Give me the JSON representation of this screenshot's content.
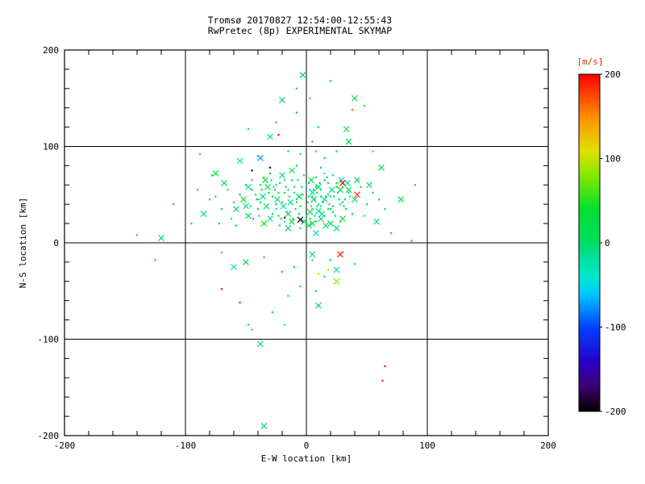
{
  "header": {
    "line1": "Tromsø 20170827 12:54:00-12:55:43",
    "line2": "RwPretec (8p) EXPERIMENTAL SKYMAP"
  },
  "chart_data": {
    "type": "scatter",
    "title": "Tromsø 20170827 12:54:00-12:55:43",
    "subtitle": "RwPretec (8p) EXPERIMENTAL SKYMAP",
    "xlabel": "E-W location [km]",
    "ylabel": "N-S location [km]",
    "xlim": [
      -200,
      200
    ],
    "ylim": [
      -200,
      200
    ],
    "xticks": [
      -200,
      -100,
      0,
      100,
      200
    ],
    "yticks": [
      -200,
      -100,
      0,
      100,
      200
    ],
    "grid": true,
    "frame_color": "#000000",
    "background": "#ffffff",
    "colorbar": {
      "label": "[m/s]",
      "ticks": [
        200,
        100,
        0,
        -100,
        -200
      ],
      "range": [
        -200,
        200
      ],
      "label_color": "#d43000"
    },
    "colormap": [
      [
        -200,
        "#000000"
      ],
      [
        -170,
        "#3c0070"
      ],
      [
        -140,
        "#2a00c8"
      ],
      [
        -100,
        "#0040ff"
      ],
      [
        -60,
        "#00c8ff"
      ],
      [
        -40,
        "#00e8cc"
      ],
      [
        -15,
        "#00e09a"
      ],
      [
        0,
        "#00dd66"
      ],
      [
        40,
        "#00e030"
      ],
      [
        80,
        "#80e800"
      ],
      [
        110,
        "#e0e000"
      ],
      [
        150,
        "#ff9000"
      ],
      [
        200,
        "#ff0000"
      ]
    ],
    "point_format": [
      "x_km",
      "y_km",
      "velocity_ms",
      "marker(d=dot,x=cross)"
    ],
    "points": [
      [
        -8,
        42,
        12,
        "d"
      ],
      [
        3,
        55,
        -8,
        "d"
      ],
      [
        -15,
        30,
        25,
        "x"
      ],
      [
        12,
        48,
        3,
        "d"
      ],
      [
        -25,
        60,
        -18,
        "d"
      ],
      [
        5,
        20,
        30,
        "x"
      ],
      [
        -40,
        45,
        8,
        "d"
      ],
      [
        20,
        35,
        -3,
        "d"
      ],
      [
        -2,
        70,
        20,
        "d"
      ],
      [
        8,
        10,
        -25,
        "x"
      ],
      [
        -18,
        52,
        15,
        "d"
      ],
      [
        25,
        58,
        40,
        "d"
      ],
      [
        -30,
        25,
        -12,
        "x"
      ],
      [
        15,
        65,
        5,
        "d"
      ],
      [
        -5,
        38,
        28,
        "d"
      ],
      [
        0,
        28,
        -5,
        "d"
      ],
      [
        -12,
        75,
        18,
        "x"
      ],
      [
        30,
        42,
        0,
        "d"
      ],
      [
        -45,
        55,
        35,
        "d"
      ],
      [
        10,
        33,
        -15,
        "x"
      ],
      [
        -22,
        18,
        10,
        "d"
      ],
      [
        18,
        50,
        22,
        "d"
      ],
      [
        -35,
        68,
        -20,
        "d"
      ],
      [
        6,
        45,
        6,
        "x"
      ],
      [
        -10,
        58,
        45,
        "d"
      ],
      [
        28,
        22,
        2,
        "d"
      ],
      [
        -50,
        38,
        -10,
        "x"
      ],
      [
        2,
        62,
        32,
        "d"
      ],
      [
        -28,
        48,
        14,
        "d"
      ],
      [
        22,
        70,
        -28,
        "d"
      ],
      [
        -15,
        15,
        12,
        "x"
      ],
      [
        35,
        52,
        -8,
        "d"
      ],
      [
        -8,
        80,
        25,
        "d"
      ],
      [
        12,
        25,
        3,
        "x"
      ],
      [
        -38,
        60,
        -18,
        "d"
      ],
      [
        5,
        35,
        30,
        "d"
      ],
      [
        -20,
        42,
        8,
        "d"
      ],
      [
        25,
        15,
        -3,
        "x"
      ],
      [
        -3,
        50,
        20,
        "d"
      ],
      [
        15,
        72,
        -25,
        "d"
      ],
      [
        -48,
        28,
        15,
        "x"
      ],
      [
        8,
        58,
        40,
        "d"
      ],
      [
        -25,
        35,
        -12,
        "d"
      ],
      [
        32,
        45,
        5,
        "d"
      ],
      [
        -12,
        22,
        28,
        "x"
      ],
      [
        18,
        62,
        -5,
        "d"
      ],
      [
        -42,
        50,
        18,
        "d"
      ],
      [
        2,
        18,
        0,
        "x"
      ],
      [
        -30,
        72,
        35,
        "d"
      ],
      [
        10,
        40,
        -15,
        "d"
      ],
      [
        -6,
        30,
        10,
        "d"
      ],
      [
        28,
        55,
        22,
        "x"
      ],
      [
        -18,
        65,
        -20,
        "d"
      ],
      [
        5,
        48,
        6,
        "d"
      ],
      [
        -35,
        20,
        45,
        "x"
      ],
      [
        22,
        38,
        2,
        "d"
      ],
      [
        -10,
        52,
        -10,
        "d"
      ],
      [
        38,
        30,
        32,
        "d"
      ],
      [
        -52,
        45,
        14,
        "x"
      ],
      [
        0,
        60,
        -28,
        "d"
      ],
      [
        -23,
        28,
        12,
        "d"
      ],
      [
        15,
        45,
        -8,
        "x"
      ],
      [
        -40,
        35,
        25,
        "d"
      ],
      [
        8,
        68,
        3,
        "d"
      ],
      [
        -15,
        55,
        -18,
        "d"
      ],
      [
        30,
        25,
        30,
        "x"
      ],
      [
        -5,
        15,
        8,
        "d"
      ],
      [
        20,
        48,
        -3,
        "d"
      ],
      [
        -32,
        58,
        20,
        "x"
      ],
      [
        12,
        38,
        -25,
        "d"
      ],
      [
        -45,
        65,
        15,
        "d"
      ],
      [
        3,
        25,
        40,
        "d"
      ],
      [
        -20,
        70,
        -12,
        "x"
      ],
      [
        26,
        52,
        5,
        "d"
      ],
      [
        -8,
        45,
        28,
        "d"
      ],
      [
        16,
        18,
        -5,
        "x"
      ],
      [
        -38,
        42,
        18,
        "d"
      ],
      [
        6,
        55,
        0,
        "d"
      ],
      [
        -28,
        30,
        35,
        "d"
      ],
      [
        34,
        62,
        -15,
        "x"
      ],
      [
        -14,
        48,
        10,
        "d"
      ],
      [
        24,
        28,
        22,
        "d"
      ],
      [
        -48,
        58,
        -20,
        "x"
      ],
      [
        1,
        42,
        6,
        "d"
      ],
      [
        -22,
        62,
        45,
        "d"
      ],
      [
        18,
        35,
        2,
        "d"
      ],
      [
        -36,
        48,
        -10,
        "x"
      ],
      [
        9,
        52,
        32,
        "d"
      ],
      [
        -11,
        25,
        14,
        "d"
      ],
      [
        29,
        65,
        -28,
        "x"
      ],
      [
        -55,
        50,
        12,
        "d"
      ],
      [
        4,
        38,
        -8,
        "d"
      ],
      [
        -26,
        55,
        25,
        "d"
      ],
      [
        20,
        20,
        3,
        "x"
      ],
      [
        -7,
        65,
        -18,
        "d"
      ],
      [
        14,
        42,
        30,
        "d"
      ],
      [
        -33,
        38,
        8,
        "x"
      ],
      [
        7,
        28,
        -3,
        "d"
      ],
      [
        -17,
        58,
        20,
        "d"
      ],
      [
        36,
        48,
        -25,
        "d"
      ],
      [
        -60,
        42,
        15,
        "d"
      ],
      [
        11,
        62,
        40,
        "d"
      ],
      [
        -24,
        45,
        -12,
        "x"
      ],
      [
        31,
        38,
        5,
        "d"
      ],
      [
        -9,
        35,
        28,
        "d"
      ],
      [
        21,
        55,
        -5,
        "x"
      ],
      [
        -44,
        25,
        18,
        "d"
      ],
      [
        2,
        48,
        0,
        "d"
      ],
      [
        -29,
        65,
        35,
        "d"
      ],
      [
        13,
        30,
        -15,
        "x"
      ],
      [
        -4,
        58,
        10,
        "d"
      ],
      [
        27,
        45,
        22,
        "d"
      ],
      [
        -19,
        38,
        -20,
        "x"
      ],
      [
        8,
        22,
        6,
        "d"
      ],
      [
        -37,
        55,
        45,
        "d"
      ],
      [
        17,
        68,
        2,
        "d"
      ],
      [
        -13,
        42,
        -10,
        "x"
      ],
      [
        33,
        35,
        32,
        "d"
      ],
      [
        -50,
        60,
        14,
        "d"
      ],
      [
        5,
        52,
        -28,
        "x"
      ],
      [
        -21,
        25,
        12,
        "d"
      ],
      [
        23,
        48,
        -8,
        "d"
      ],
      [
        -41,
        45,
        25,
        "d"
      ],
      [
        10,
        58,
        3,
        "x"
      ],
      [
        -16,
        32,
        -18,
        "d"
      ],
      [
        25,
        62,
        30,
        "d"
      ],
      [
        -2,
        22,
        8,
        "x"
      ],
      [
        19,
        40,
        -3,
        "d"
      ],
      [
        -31,
        52,
        20,
        "d"
      ],
      [
        15,
        28,
        -25,
        "d"
      ],
      [
        -58,
        35,
        15,
        "x"
      ],
      [
        7,
        45,
        40,
        "d"
      ],
      [
        -27,
        58,
        -12,
        "d"
      ],
      [
        35,
        55,
        5,
        "x"
      ],
      [
        -12,
        65,
        28,
        "d"
      ],
      [
        22,
        32,
        -5,
        "d"
      ],
      [
        -39,
        28,
        18,
        "d"
      ],
      [
        4,
        65,
        0,
        "x"
      ],
      [
        -25,
        40,
        35,
        "d"
      ],
      [
        12,
        55,
        -15,
        "d"
      ],
      [
        -6,
        48,
        10,
        "x"
      ],
      [
        30,
        58,
        22,
        "d"
      ],
      [
        -18,
        22,
        -20,
        "d"
      ],
      [
        9,
        38,
        6,
        "d"
      ],
      [
        -34,
        65,
        45,
        "x"
      ],
      [
        16,
        48,
        2,
        "d"
      ],
      [
        -46,
        38,
        -10,
        "d"
      ],
      [
        3,
        32,
        32,
        "x"
      ],
      [
        -23,
        52,
        14,
        "d"
      ],
      [
        28,
        40,
        -28,
        "d"
      ],
      [
        -65,
        55,
        12,
        "d"
      ],
      [
        40,
        45,
        -8,
        "x"
      ],
      [
        -70,
        35,
        25,
        "d"
      ],
      [
        45,
        58,
        3,
        "d"
      ],
      [
        -62,
        25,
        -18,
        "d"
      ],
      [
        42,
        65,
        30,
        "x"
      ],
      [
        -75,
        48,
        8,
        "d"
      ],
      [
        50,
        40,
        -3,
        "d"
      ],
      [
        -68,
        62,
        20,
        "x"
      ],
      [
        48,
        28,
        -25,
        "d"
      ],
      [
        -80,
        45,
        15,
        "d"
      ],
      [
        55,
        52,
        40,
        "d"
      ],
      [
        -85,
        30,
        -12,
        "x"
      ],
      [
        60,
        45,
        5,
        "d"
      ],
      [
        -72,
        20,
        28,
        "d"
      ],
      [
        52,
        60,
        -5,
        "x"
      ],
      [
        -90,
        55,
        18,
        "d"
      ],
      [
        65,
        35,
        0,
        "d"
      ],
      [
        -78,
        70,
        35,
        "d"
      ],
      [
        58,
        22,
        -15,
        "x"
      ],
      [
        -15,
        95,
        10,
        "d"
      ],
      [
        5,
        105,
        22,
        "d"
      ],
      [
        -30,
        110,
        -20,
        "x"
      ],
      [
        10,
        120,
        6,
        "d"
      ],
      [
        -8,
        135,
        45,
        "d"
      ],
      [
        -20,
        148,
        2,
        "x"
      ],
      [
        3,
        150,
        -10,
        "d"
      ],
      [
        -40,
        90,
        32,
        "d"
      ],
      [
        25,
        95,
        14,
        "d"
      ],
      [
        -55,
        85,
        -28,
        "x"
      ],
      [
        15,
        88,
        12,
        "d"
      ],
      [
        -5,
        92,
        -8,
        "d"
      ],
      [
        35,
        105,
        25,
        "x"
      ],
      [
        -25,
        125,
        3,
        "d"
      ],
      [
        8,
        95,
        -18,
        "d"
      ],
      [
        -100,
        88,
        30,
        "d"
      ],
      [
        -120,
        5,
        8,
        "x"
      ],
      [
        -140,
        8,
        -3,
        "d"
      ],
      [
        -125,
        -18,
        20,
        "d"
      ],
      [
        -60,
        -25,
        -25,
        "x"
      ],
      [
        -35,
        -15,
        15,
        "d"
      ],
      [
        -20,
        -30,
        40,
        "d"
      ],
      [
        5,
        -12,
        -12,
        "x"
      ],
      [
        20,
        -18,
        5,
        "d"
      ],
      [
        -10,
        -25,
        28,
        "d"
      ],
      [
        30,
        -10,
        -5,
        "d"
      ],
      [
        -50,
        -20,
        18,
        "x"
      ],
      [
        15,
        -35,
        0,
        "d"
      ],
      [
        -5,
        -45,
        35,
        "d"
      ],
      [
        25,
        -28,
        -15,
        "x"
      ],
      [
        -70,
        -10,
        10,
        "d"
      ],
      [
        40,
        -22,
        22,
        "d"
      ],
      [
        -15,
        -55,
        -20,
        "d"
      ],
      [
        10,
        -65,
        6,
        "x"
      ],
      [
        -28,
        -72,
        45,
        "d"
      ],
      [
        -45,
        -90,
        2,
        "d"
      ],
      [
        -38,
        -105,
        -10,
        "x"
      ],
      [
        -48,
        -85,
        32,
        "d"
      ],
      [
        8,
        -50,
        14,
        "d"
      ],
      [
        -18,
        -85,
        -28,
        "d"
      ],
      [
        -45,
        75,
        -195,
        "d"
      ],
      [
        -30,
        78,
        -188,
        "d"
      ],
      [
        -5,
        24,
        -192,
        "x"
      ],
      [
        -18,
        26,
        -160,
        "d"
      ],
      [
        -75,
        72,
        15,
        "x"
      ],
      [
        30,
        62,
        195,
        "x"
      ],
      [
        42,
        50,
        185,
        "x"
      ],
      [
        28,
        -12,
        190,
        "x"
      ],
      [
        -23,
        112,
        195,
        "d"
      ],
      [
        38,
        138,
        160,
        "d"
      ],
      [
        -70,
        -48,
        195,
        "d"
      ],
      [
        -55,
        -62,
        190,
        "d"
      ],
      [
        65,
        -128,
        195,
        "d"
      ],
      [
        63,
        -143,
        192,
        "d"
      ],
      [
        -35,
        -190,
        10,
        "x"
      ],
      [
        -3,
        174,
        12,
        "x"
      ],
      [
        40,
        150,
        18,
        "x"
      ],
      [
        87,
        2,
        22,
        "d"
      ],
      [
        25,
        -40,
        85,
        "x"
      ],
      [
        10,
        -32,
        95,
        "d"
      ],
      [
        18,
        -28,
        120,
        "d"
      ],
      [
        55,
        95,
        60,
        "d"
      ],
      [
        33,
        118,
        10,
        "x"
      ],
      [
        48,
        142,
        15,
        "d"
      ],
      [
        -58,
        18,
        -70,
        "d"
      ],
      [
        12,
        78,
        -65,
        "d"
      ],
      [
        -38,
        88,
        -75,
        "x"
      ],
      [
        5,
        -18,
        -60,
        "d"
      ],
      [
        70,
        10,
        25,
        "d"
      ],
      [
        78,
        45,
        12,
        "x"
      ],
      [
        -95,
        20,
        8,
        "d"
      ],
      [
        -110,
        40,
        15,
        "d"
      ],
      [
        90,
        60,
        20,
        "d"
      ],
      [
        -8,
        160,
        6,
        "d"
      ],
      [
        20,
        168,
        14,
        "d"
      ],
      [
        -48,
        118,
        10,
        "d"
      ],
      [
        62,
        78,
        18,
        "x"
      ],
      [
        -88,
        92,
        5,
        "d"
      ]
    ]
  }
}
